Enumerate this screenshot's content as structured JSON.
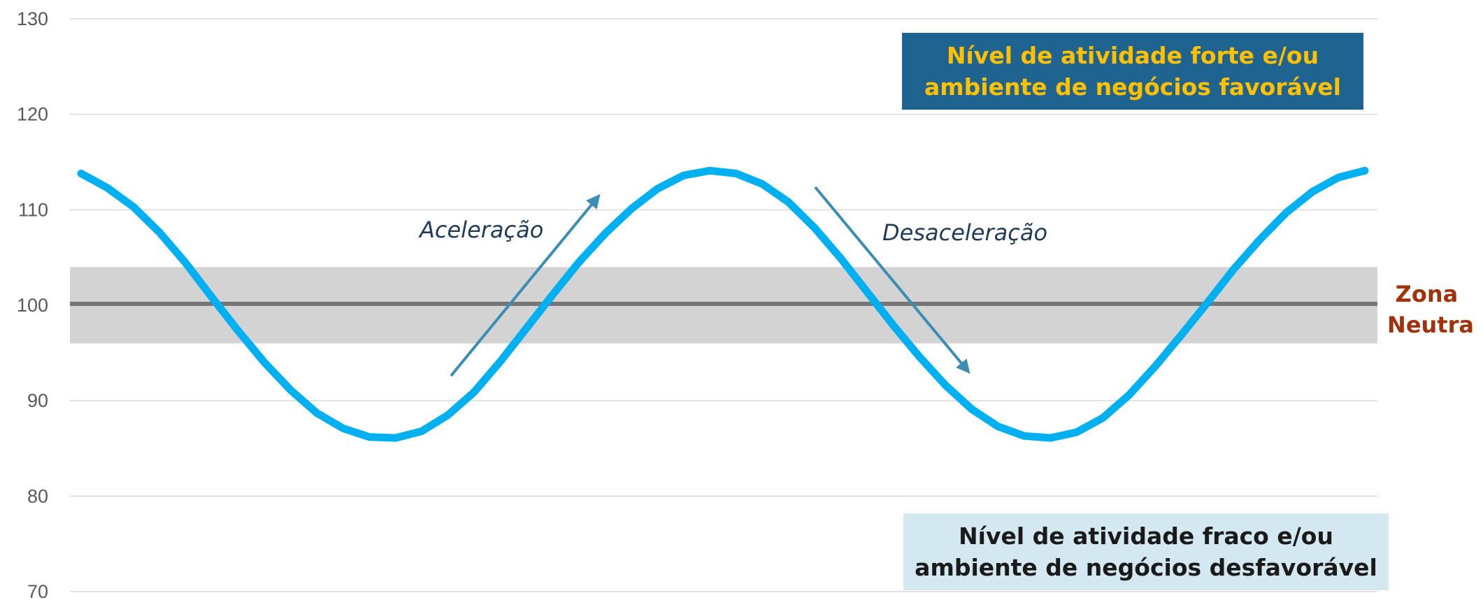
{
  "chart_data": {
    "type": "line",
    "title": "",
    "xlabel": "",
    "ylabel": "",
    "ylim": [
      70,
      130
    ],
    "yticks": [
      70,
      80,
      90,
      100,
      110,
      120,
      130
    ],
    "grid": true,
    "neutral_line": 100,
    "neutral_band": [
      96,
      104
    ],
    "series": [
      {
        "values": [
          113.8,
          112.3,
          110.3,
          107.6,
          104.4,
          100.8,
          97.3,
          94.0,
          91.1,
          88.7,
          87.1,
          86.2,
          86.1,
          86.8,
          88.5,
          90.9,
          94.1,
          97.6,
          101.1,
          104.5,
          107.5,
          110.1,
          112.2,
          113.6,
          114.1,
          113.8,
          112.7,
          110.8,
          108.1,
          104.9,
          101.4,
          97.9,
          94.6,
          91.6,
          89.1,
          87.3,
          86.3,
          86.1,
          86.7,
          88.2,
          90.6,
          93.6,
          96.9,
          100.3,
          103.8,
          106.9,
          109.7,
          111.9,
          113.4,
          114.1
        ],
        "color": "#00b0f0"
      }
    ],
    "annotations": [
      {
        "text": "Aceleração"
      },
      {
        "text": "Desaceleração"
      },
      {
        "text": "Zona Neutra"
      }
    ],
    "boxes": [
      {
        "line1": "Nível de atividade forte e/ou",
        "line2": "ambiente de negócios favorável",
        "bg": "#1f6391",
        "fg": "#ffc000"
      },
      {
        "line1": "Nível de atividade fraco e/ou",
        "line2": "ambiente de negócios desfavorável",
        "bg": "#d4e8f2",
        "fg": "#1a1a1a"
      }
    ]
  },
  "colors": {
    "grid": "#d9d9d9",
    "band": "#d3d3d3",
    "neutral_line": "#767676",
    "arrow": "#3b8db3",
    "zone_text": "#a0330c"
  }
}
